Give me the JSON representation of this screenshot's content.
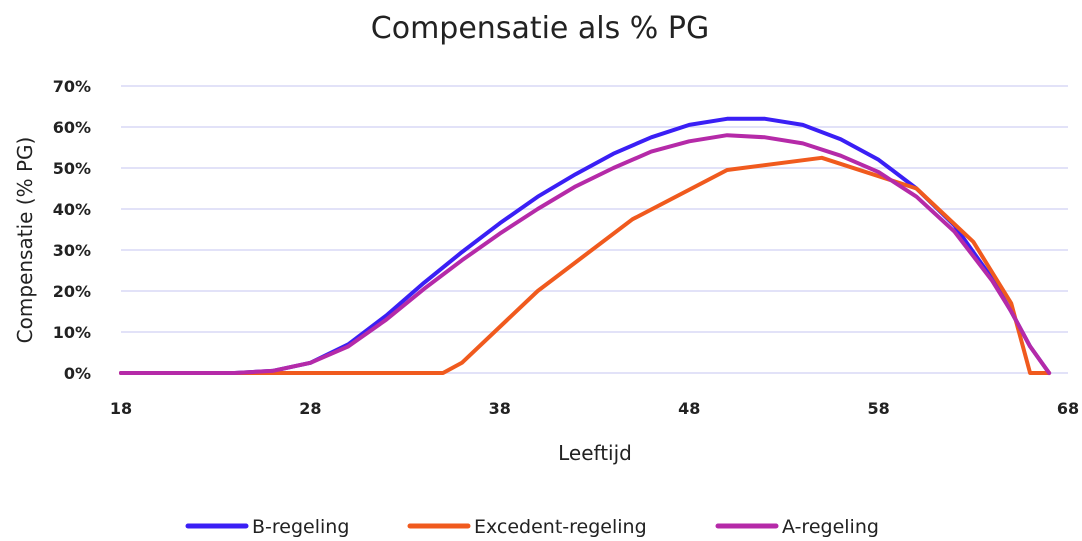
{
  "chart_data": {
    "type": "line",
    "title": "Compensatie als % PG",
    "xlabel": "Leeftijd",
    "ylabel": "Compensatie (% PG)",
    "xlim": [
      18,
      68
    ],
    "ylim": [
      0,
      70
    ],
    "xticks": [
      18,
      28,
      38,
      48,
      58,
      68
    ],
    "xtick_labels": [
      "18",
      "28",
      "38",
      "48",
      "58",
      "68"
    ],
    "yticks": [
      0,
      10,
      20,
      30,
      40,
      50,
      60,
      70
    ],
    "ytick_labels": [
      "0%",
      "10%",
      "20%",
      "30%",
      "40%",
      "50%",
      "60%",
      "70%"
    ],
    "grid": true,
    "legend_position": "bottom",
    "series": [
      {
        "name": "B-regeling",
        "color": "#3a1ff5",
        "x": [
          18,
          24,
          26,
          28,
          30,
          32,
          34,
          36,
          38,
          40,
          42,
          44,
          46,
          48,
          50,
          52,
          54,
          56,
          58,
          60,
          62,
          64,
          65,
          66,
          67
        ],
        "y": [
          0,
          0,
          0.5,
          2.5,
          7,
          14,
          22,
          29.5,
          36.5,
          43,
          48.5,
          53.5,
          57.5,
          60.5,
          62,
          62,
          60.5,
          57,
          52,
          45,
          36,
          23,
          15,
          6.5,
          0
        ]
      },
      {
        "name": "Excedent-regeling",
        "color": "#f05a1e",
        "x": [
          18,
          35,
          36,
          40,
          45,
          50,
          55,
          60,
          63,
          65,
          66,
          67
        ],
        "y": [
          0,
          0,
          2.5,
          20,
          37.5,
          49.5,
          52.5,
          45,
          32,
          17,
          0,
          0
        ]
      },
      {
        "name": "A-regeling",
        "color": "#b52aa8",
        "x": [
          18,
          24,
          26,
          28,
          30,
          32,
          34,
          36,
          38,
          40,
          42,
          44,
          46,
          48,
          50,
          52,
          54,
          56,
          58,
          60,
          62,
          64,
          65,
          66,
          67
        ],
        "y": [
          0,
          0,
          0.5,
          2.5,
          6.5,
          13,
          20.5,
          27.5,
          34,
          40,
          45.5,
          50,
          54,
          56.5,
          58,
          57.5,
          56,
          53,
          49,
          43,
          34.5,
          22.5,
          15,
          6.5,
          0
        ]
      }
    ]
  }
}
